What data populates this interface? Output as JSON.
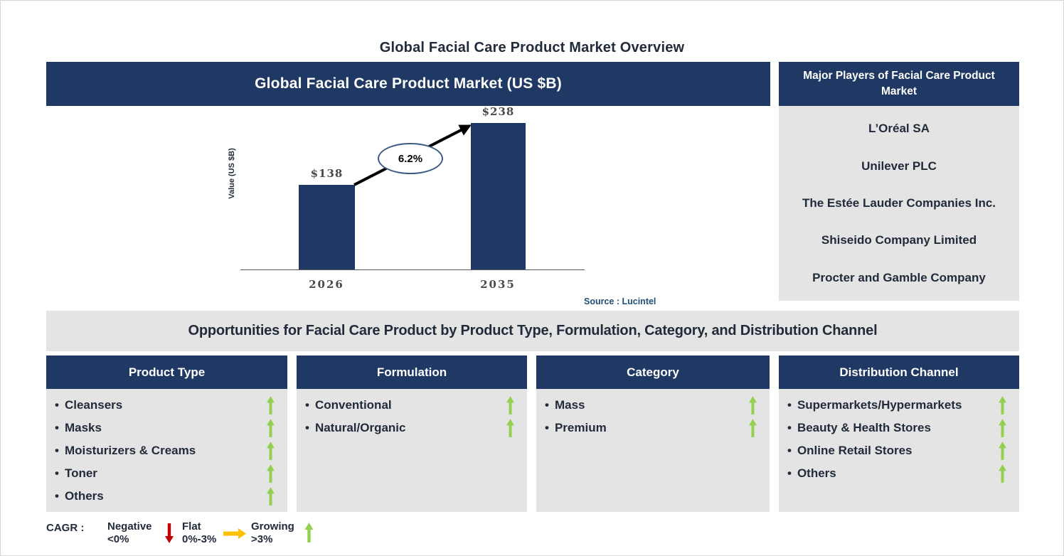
{
  "page_title": "Global Facial Care Product Market Overview",
  "chart_panel": {
    "header": "Global Facial Care Product Market (US $B)",
    "source": "Source : Lucintel"
  },
  "chart_data": {
    "type": "bar",
    "title": "Global Facial Care Product Market (US $B)",
    "categories": [
      "2026",
      "2035"
    ],
    "values": [
      138,
      238
    ],
    "value_labels": [
      "$138",
      "$238"
    ],
    "ylabel": "Value (US $B)",
    "xlabel": "",
    "annotation": "6.2%",
    "annotation_meaning": "CAGR 2026-2035",
    "bar_color": "#203864",
    "ylim": [
      0,
      250
    ],
    "grid": false,
    "legend_position": "none"
  },
  "players": {
    "header": "Major Players of Facial Care Product Market",
    "companies": [
      "L’Oréal SA",
      "Unilever PLC",
      "The Estée Lauder Companies Inc.",
      "Shiseido Company Limited",
      "Procter and Gamble Company"
    ]
  },
  "opportunities": {
    "header": "Opportunities for Facial Care Product by Product Type, Formulation, Category, and Distribution Channel",
    "bullet": "•",
    "columns": [
      {
        "title": "Product Type",
        "items": [
          {
            "label": "Cleansers",
            "trend": "growing"
          },
          {
            "label": "Masks",
            "trend": "growing"
          },
          {
            "label": "Moisturizers & Creams",
            "trend": "growing"
          },
          {
            "label": "Toner",
            "trend": "growing"
          },
          {
            "label": "Others",
            "trend": "growing"
          }
        ]
      },
      {
        "title": "Formulation",
        "items": [
          {
            "label": "Conventional",
            "trend": "growing"
          },
          {
            "label": "Natural/Organic",
            "trend": "growing"
          }
        ]
      },
      {
        "title": "Category",
        "items": [
          {
            "label": "Mass",
            "trend": "growing"
          },
          {
            "label": "Premium",
            "trend": "growing"
          }
        ]
      },
      {
        "title": "Distribution Channel",
        "items": [
          {
            "label": "Supermarkets/Hypermarkets",
            "trend": "growing"
          },
          {
            "label": "Beauty & Health Stores",
            "trend": "growing"
          },
          {
            "label": "Online Retail Stores",
            "trend": "growing"
          },
          {
            "label": "Others",
            "trend": "growing"
          }
        ]
      }
    ]
  },
  "legend": {
    "prefix": "CAGR :",
    "items": [
      {
        "label": "Negative",
        "range": "<0%",
        "direction": "down",
        "color": "#C00000"
      },
      {
        "label": "Flat",
        "range": "0%-3%",
        "direction": "right",
        "color": "#FFC000"
      },
      {
        "label": "Growing",
        "range": ">3%",
        "direction": "up",
        "color": "#92D050"
      }
    ]
  },
  "colors": {
    "navy": "#203864",
    "panel_gray": "#E5E4E4",
    "text_dark": "#212B3A",
    "chart_label_gray": "#4A4A4A",
    "source_blue": "#1F4E79",
    "growing_green": "#92D050",
    "negative_red": "#C00000",
    "flat_orange": "#FFC000"
  }
}
